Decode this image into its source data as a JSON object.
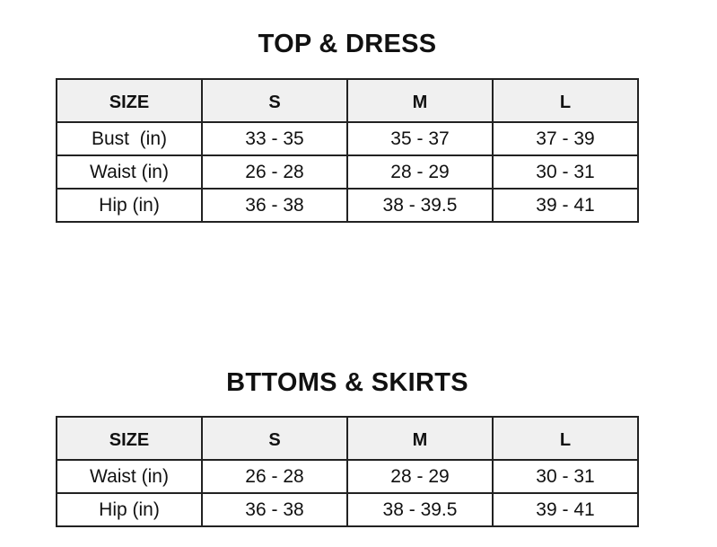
{
  "tables": [
    {
      "title": "TOP & DRESS",
      "headers": [
        "SIZE",
        "S",
        "M",
        "L"
      ],
      "rows": [
        [
          "Bust  (in)",
          "33 - 35",
          "35 - 37",
          "37 - 39"
        ],
        [
          "Waist (in)",
          "26 - 28",
          "28 - 29",
          "30 - 31"
        ],
        [
          "Hip (in)",
          "36 - 38",
          "38 - 39.5",
          "39 - 41"
        ]
      ]
    },
    {
      "title": "BTTOMS & SKIRTS",
      "headers": [
        "SIZE",
        "S",
        "M",
        "L"
      ],
      "rows": [
        [
          "Waist (in)",
          "26 - 28",
          "28 - 29",
          "30 - 31"
        ],
        [
          "Hip (in)",
          "36 - 38",
          "38 - 39.5",
          "39 - 41"
        ]
      ]
    }
  ]
}
